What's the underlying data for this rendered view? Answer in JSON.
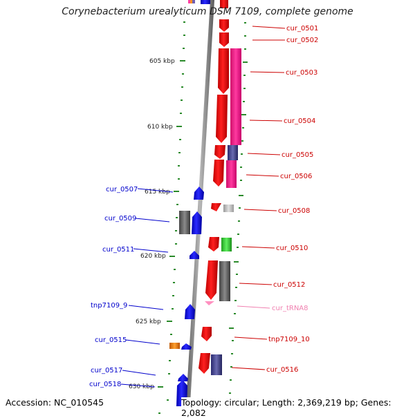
{
  "title": "Corynebacterium urealyticum DSM 7109, complete genome",
  "footer": {
    "accession": "Accession: NC_010545",
    "summary": "Topology: circular; Length: 2,369,219 bp; Genes: 2,082"
  },
  "colors": {
    "backbone": "#8a8a8a",
    "ruler": "#2a8a2a",
    "forward_label": "#cc0000",
    "reverse_label": "#0000cc",
    "trna_label": "#f080b0"
  },
  "ruler_labels": [
    "605 kbp",
    "610 kbp",
    "615 kbp",
    "620 kbp",
    "625 kbp",
    "630 kbp"
  ],
  "forward_genes": [
    "cur_0501",
    "cur_0502",
    "cur_0503",
    "cur_0504",
    "cur_0505",
    "cur_0506",
    "cur_0508",
    "cur_0510",
    "cur_0512",
    "cur_tRNA8",
    "tnp7109_10",
    "cur_0516"
  ],
  "reverse_genes": [
    "cur_0507",
    "cur_0509",
    "cur_0511",
    "tnp7109_9",
    "cur_0515",
    "cur_0517",
    "cur_0518"
  ]
}
